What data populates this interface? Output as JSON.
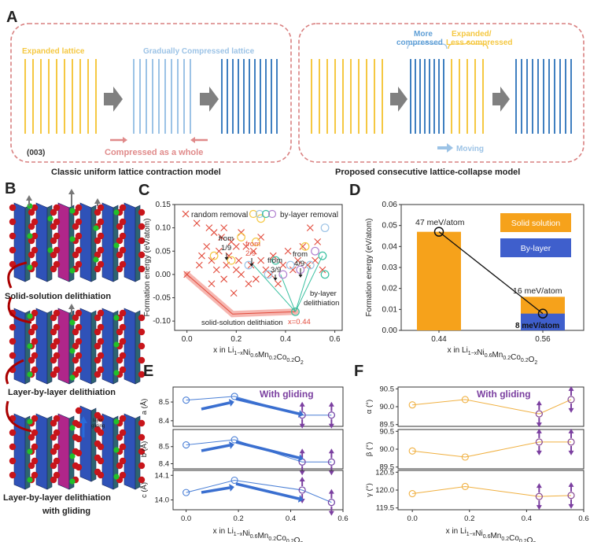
{
  "panels": {
    "a": "A",
    "b": "B",
    "c": "C",
    "d": "D",
    "e": "E",
    "f": "F"
  },
  "panel_a": {
    "expanded_lattice": "Expanded lattice",
    "gradually_compressed": "Gradually Compressed lattice",
    "compressed_whole": "Compressed as a whole",
    "plane": "(003)",
    "classic_caption": "Classic uniform lattice contraction model",
    "more_compressed": "More\ncompressed",
    "more_line1": "More",
    "more_line2": "compressed",
    "exp_less_line1": "Expanded/",
    "exp_less_line2": "Less compressed",
    "moving": "Moving",
    "proposed_caption": "Proposed consecutive lattice-collapse model",
    "colors": {
      "yellow": "#f5c842",
      "blue_light": "#9cc3e6",
      "blue_dark": "#3f7fc0",
      "pink": "#e08a8a",
      "dash_border": "#d98080"
    }
  },
  "panel_b": {
    "solid_solution": "Solid-solution delithiation",
    "layer_by_layer": "Layer-by-layer delithiation",
    "lbl_gliding_1": "Layer-by-layer delithiation",
    "lbl_gliding_2": "with gliding",
    "layer_gliding_1": "layer",
    "layer_gliding_2": "gliding"
  },
  "panel_c": {
    "legend_random": "random removal",
    "legend_bylayer": "by-layer removal",
    "from_1_9_a": "from",
    "from_1_9_b": "1/9",
    "from_2_9_a": "from",
    "from_2_9_b": "2/9",
    "from_3_9_a": "from",
    "from_3_9_b": "3/9",
    "from_4_9_a": "from",
    "from_4_9_b": "4/9",
    "bylayer_deli_1": "by-layer",
    "bylayer_deli_2": "delithiation",
    "solid_deli": "solid-solution delithiation",
    "x044": "x=0.44",
    "ylabel": "Formation energy (eV/atom)",
    "xlabel": "x  in Li1−xNi0.6Mn0.2Co0.2O2",
    "yticks": [
      "0.15",
      "0.10",
      "0.05",
      "0.00",
      "-0.05",
      "-0.10"
    ],
    "xticks": [
      "0.0",
      "0.2",
      "0.4",
      "0.6"
    ]
  },
  "panel_d": {
    "label_47": "47 meV/atom",
    "label_16": "16 meV/atom",
    "label_8": "8 meV/atom",
    "legend_solid": "Solid solution",
    "legend_bylayer": "By-layer",
    "ylabel": "Formation energy (eV/atom)",
    "xlabel": "x  in Li1−xNi0.6Mn0.2Co0.2O2",
    "yticks": [
      "0.06",
      "0.05",
      "0.04",
      "0.03",
      "0.02",
      "0.01",
      "0.00"
    ],
    "xticks": [
      "0.44",
      "0.56"
    ]
  },
  "panel_e": {
    "gliding": "With gliding",
    "ylabels": [
      "a (Å)",
      "b (Å)",
      "c (Å)"
    ],
    "a_ticks": [
      "8.5",
      "8.4"
    ],
    "b_ticks": [
      "8.5",
      "8.4"
    ],
    "c_ticks": [
      "14.1",
      "14.0"
    ],
    "xticks": [
      "0.0",
      "0.2",
      "0.4",
      "0.6"
    ],
    "xlabel": "x  in Li1−xNi0.6Mn0.2Co0.2O2"
  },
  "panel_f": {
    "gliding": "With gliding",
    "ylabels": [
      "α (°)",
      "β (°)",
      "γ (°)"
    ],
    "alpha_ticks": [
      "90.5",
      "90.0",
      "89.5"
    ],
    "beta_ticks": [
      "90.5",
      "90.0",
      "89.5"
    ],
    "gamma_ticks": [
      "120.5",
      "120.0",
      "119.5"
    ],
    "xticks": [
      "0.0",
      "0.2",
      "0.4",
      "0.6"
    ],
    "xlabel": "x  in Li1−xNi0.6Mn0.2Co0.2O2"
  },
  "chart_data": [
    {
      "type": "bar",
      "categories": [
        "0.44",
        "0.56"
      ],
      "series": [
        {
          "name": "Solid solution",
          "values": [
            0.047,
            0.016
          ]
        },
        {
          "name": "By-layer",
          "values": [
            0.0,
            0.008
          ]
        }
      ],
      "ylabel": "Formation energy (eV/atom)",
      "xlabel": "x  in Li1−xNi0.6Mn0.2Co0.2O2",
      "ylim": [
        0,
        0.06
      ]
    },
    {
      "type": "line",
      "x": [
        0.0,
        0.185,
        0.444,
        0.556
      ],
      "series": [
        {
          "name": "a (Å)",
          "values": [
            8.51,
            8.53,
            8.43,
            8.43
          ]
        },
        {
          "name": "b (Å)",
          "values": [
            8.51,
            8.54,
            8.41,
            8.41
          ]
        },
        {
          "name": "c (Å)",
          "values": [
            14.03,
            14.08,
            14.04,
            13.99
          ]
        }
      ],
      "xlabel": "x  in Li1−xNi0.6Mn0.2Co0.2O2",
      "xlim": [
        -0.05,
        0.6
      ]
    },
    {
      "type": "line",
      "x": [
        0.0,
        0.185,
        0.444,
        0.556
      ],
      "series": [
        {
          "name": "α (°)",
          "values": [
            90.05,
            90.2,
            89.8,
            90.2
          ]
        },
        {
          "name": "β (°)",
          "values": [
            89.95,
            89.78,
            90.2,
            90.2
          ]
        },
        {
          "name": "γ (°)",
          "values": [
            119.9,
            120.1,
            119.82,
            119.85
          ]
        }
      ],
      "xlabel": "x  in Li1−xNi0.6Mn0.2Co0.2O2",
      "xlim": [
        -0.05,
        0.6
      ]
    }
  ]
}
